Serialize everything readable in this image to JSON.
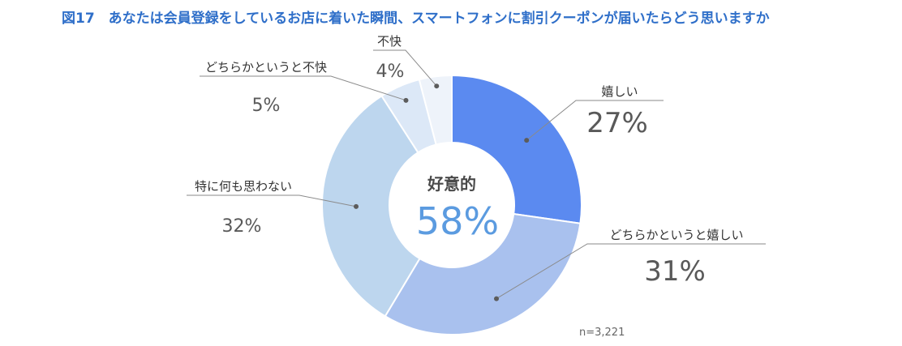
{
  "title": "図17　あなたは会員登録をしているお店に着いた瞬間、スマートフォンに割引クーポンが届いたらどう思いますか",
  "center": {
    "label": "好意的",
    "value": "58%"
  },
  "note": "n=3,221",
  "chart_data": {
    "type": "pie",
    "title": "図17　あなたは会員登録をしているお店に着いた瞬間、スマートフォンに割引クーポンが届いたらどう思いますか",
    "slices": [
      {
        "label": "嬉しい",
        "value": 27,
        "display": "27%",
        "color": "#5b8af0"
      },
      {
        "label": "どちらかというと嬉しい",
        "value": 31,
        "display": "31%",
        "color": "#a9c1ee"
      },
      {
        "label": "特に何も思わない",
        "value": 32,
        "display": "32%",
        "color": "#bdd6ee"
      },
      {
        "label": "どちらかというと不快",
        "value": 5,
        "display": "5%",
        "color": "#dce8f7"
      },
      {
        "label": "不快",
        "value": 4,
        "display": "4%",
        "color": "#eef3fa"
      }
    ]
  }
}
